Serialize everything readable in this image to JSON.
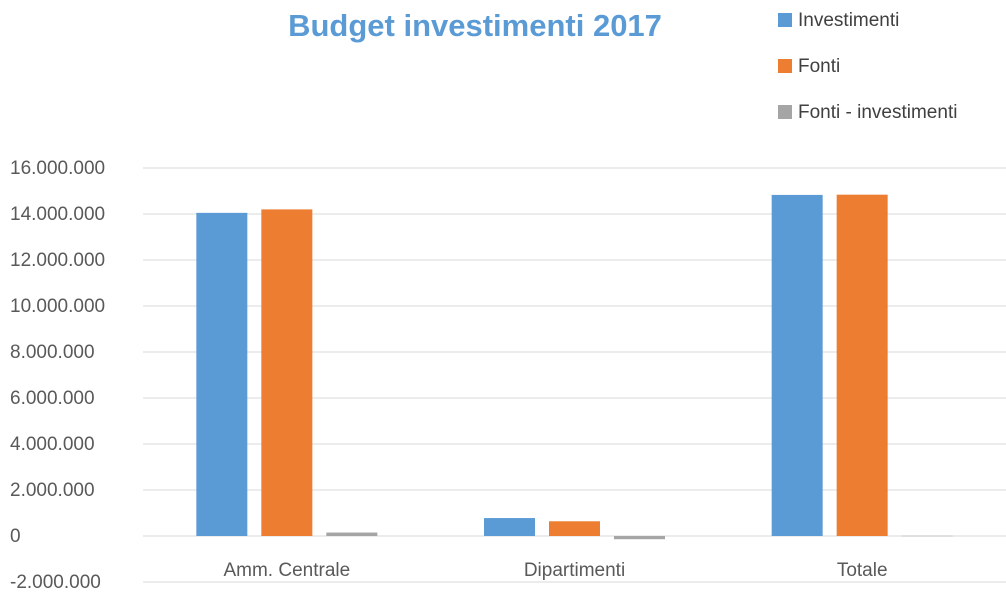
{
  "chart_data": {
    "type": "bar",
    "title": "Budget investimenti 2017",
    "categories": [
      "Amm. Centrale",
      "Dipartimenti",
      "Totale"
    ],
    "series": [
      {
        "name": "Investimenti",
        "values": [
          14050000,
          780000,
          14830000
        ],
        "color": "#5B9BD5"
      },
      {
        "name": "Fonti",
        "values": [
          14200000,
          640000,
          14840000
        ],
        "color": "#ED7D31"
      },
      {
        "name": "Fonti - investimenti",
        "values": [
          150000,
          -140000,
          10000
        ],
        "color": "#A5A5A5"
      }
    ],
    "yticks": [
      "-2.000.000",
      "0",
      "2.000.000",
      "4.000.000",
      "6.000.000",
      "8.000.000",
      "10.000.000",
      "12.000.000",
      "14.000.000",
      "16.000.000"
    ],
    "ylim": [
      -2000000,
      16000000
    ],
    "grid": true,
    "legend_position": "top-right",
    "title_color": "#5B9BD5"
  }
}
